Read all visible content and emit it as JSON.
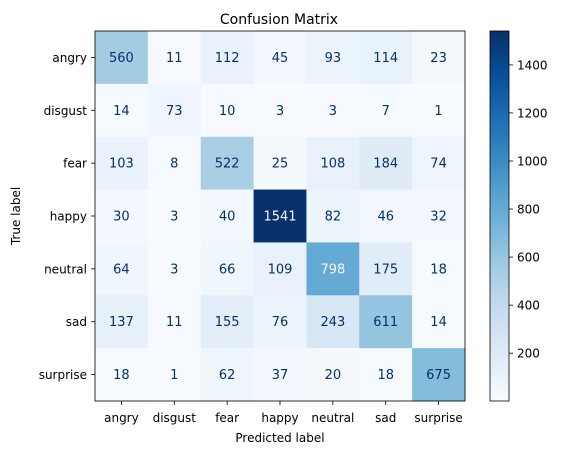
{
  "chart_data": {
    "type": "heatmap",
    "title": "Confusion Matrix",
    "xlabel": "Predicted label",
    "ylabel": "True label",
    "categories": [
      "angry",
      "disgust",
      "fear",
      "happy",
      "neutral",
      "sad",
      "surprise"
    ],
    "rows": [
      "angry",
      "disgust",
      "fear",
      "happy",
      "neutral",
      "sad",
      "surprise"
    ],
    "values": [
      [
        560,
        11,
        112,
        45,
        93,
        114,
        23
      ],
      [
        14,
        73,
        10,
        3,
        3,
        7,
        1
      ],
      [
        103,
        8,
        522,
        25,
        108,
        184,
        74
      ],
      [
        30,
        3,
        40,
        1541,
        82,
        46,
        32
      ],
      [
        64,
        3,
        66,
        109,
        798,
        175,
        18
      ],
      [
        137,
        11,
        155,
        76,
        243,
        611,
        14
      ],
      [
        18,
        1,
        62,
        37,
        20,
        18,
        675
      ]
    ],
    "colorbar": {
      "ticks": [
        200,
        400,
        600,
        800,
        1000,
        1200,
        1400
      ],
      "range": [
        1,
        1541
      ],
      "colormap": "Blues"
    },
    "colors": {
      "low": "#f7fbff",
      "high": "#08306b",
      "text_dark": "#08306b",
      "text_light": "#f7fbff"
    }
  }
}
